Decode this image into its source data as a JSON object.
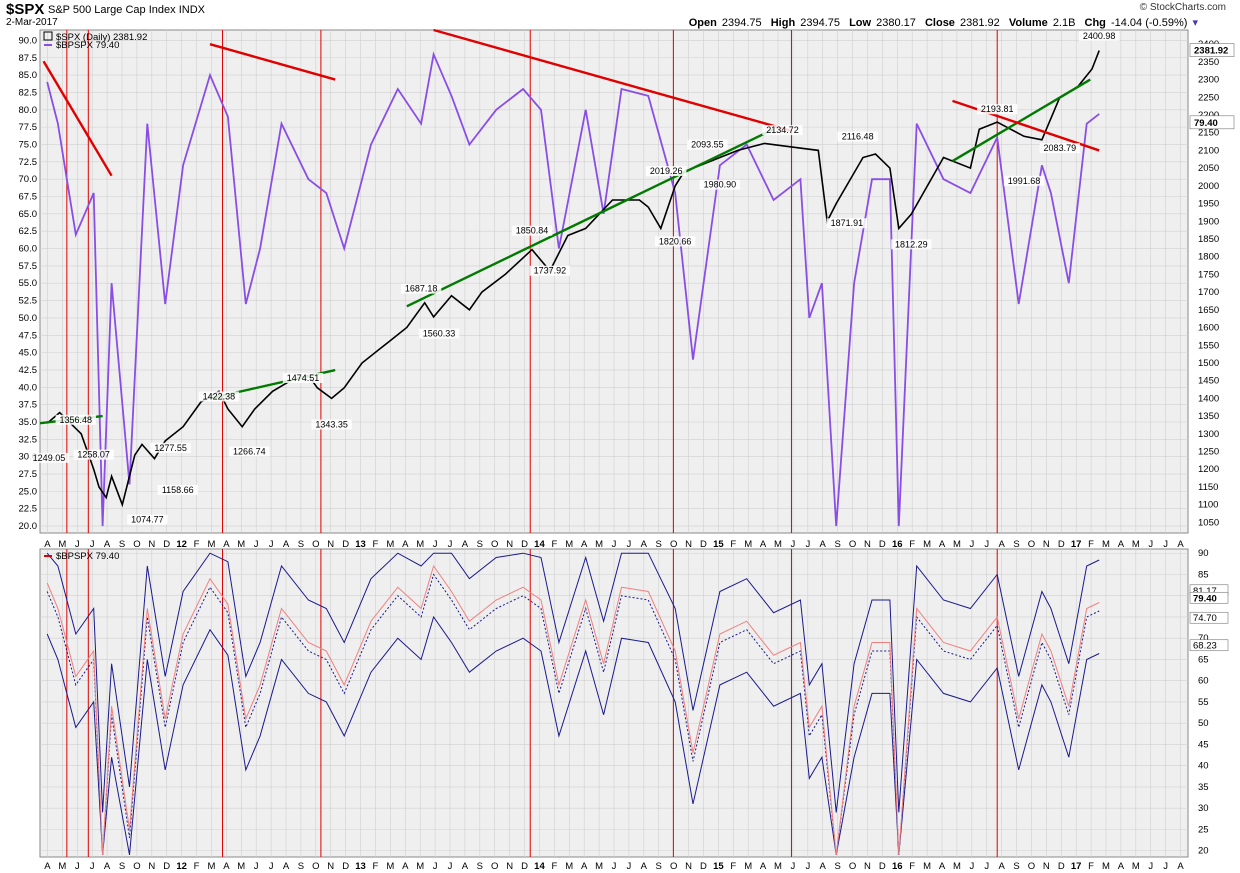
{
  "header": {
    "symbol": "$SPX",
    "name": "S&P 500 Large Cap Index",
    "exchange": "INDX",
    "date": "2-Mar-2017",
    "credit": "© StockCharts.com",
    "open_label": "Open",
    "open": "2394.75",
    "high_label": "High",
    "high": "2394.75",
    "low_label": "Low",
    "low": "2380.17",
    "close_label": "Close",
    "close": "2381.92",
    "volume_label": "Volume",
    "volume": "2.1B",
    "chg_label": "Chg",
    "chg": "-14.04 (-0.59%)"
  },
  "legend": {
    "spx": "$SPX (Daily) 2381.92",
    "bpspx": "$BPSPX 79.40",
    "lower": "$BPSPX 79.40"
  },
  "colors": {
    "bpspx": "#8a4de6",
    "price_up": "#000000",
    "price_down": "#e00000",
    "bands": "#1a1a8c",
    "ma": "#f08080",
    "trend_red": "#e00000",
    "trend_green": "#007a00",
    "vline": "#e00000",
    "grid": "#d0d0d0",
    "panel_bg": "#efefef"
  },
  "chart_data": [
    {
      "type": "line",
      "title": "$SPX (Daily) 2381.92",
      "series": [
        {
          "name": "$SPX",
          "x": [
            2011.29,
            2011.36,
            2011.42,
            2011.48,
            2011.55,
            2011.58,
            2011.62,
            2011.65,
            2011.71,
            2011.78,
            2011.82,
            2011.89,
            2011.95,
            2012.05,
            2012.15,
            2012.25,
            2012.3,
            2012.38,
            2012.45,
            2012.55,
            2012.65,
            2012.75,
            2012.8,
            2012.88,
            2012.95,
            2013.05,
            2013.2,
            2013.3,
            2013.4,
            2013.45,
            2013.55,
            2013.65,
            2013.72,
            2013.85,
            2014.0,
            2014.1,
            2014.2,
            2014.3,
            2014.45,
            2014.6,
            2014.65,
            2014.72,
            2014.8,
            2014.85,
            2014.95,
            2015.05,
            2015.15,
            2015.3,
            2015.45,
            2015.6,
            2015.65,
            2015.7,
            2015.85,
            2015.92,
            2016.0,
            2016.05,
            2016.12,
            2016.3,
            2016.45,
            2016.5,
            2016.6,
            2016.75,
            2016.85,
            2016.95,
            2017.05,
            2017.13,
            2017.17
          ],
          "y": [
            1330,
            1360,
            1330,
            1300,
            1200,
            1150,
            1120,
            1180,
            1100,
            1240,
            1270,
            1230,
            1280,
            1320,
            1390,
            1420,
            1370,
            1320,
            1370,
            1420,
            1450,
            1465,
            1430,
            1400,
            1430,
            1500,
            1560,
            1600,
            1670,
            1630,
            1690,
            1650,
            1700,
            1750,
            1820,
            1760,
            1860,
            1880,
            1960,
            1960,
            1940,
            1880,
            2000,
            2040,
            2060,
            2080,
            2100,
            2120,
            2110,
            2100,
            1900,
            1950,
            2080,
            2090,
            2050,
            1880,
            1920,
            2080,
            2050,
            2160,
            2180,
            2140,
            2130,
            2250,
            2280,
            2330,
            2381.92
          ]
        },
        {
          "name": "$BPSPX",
          "x": [
            2011.29,
            2011.35,
            2011.45,
            2011.55,
            2011.6,
            2011.65,
            2011.75,
            2011.85,
            2011.95,
            2012.05,
            2012.2,
            2012.3,
            2012.4,
            2012.48,
            2012.6,
            2012.75,
            2012.85,
            2012.95,
            2013.1,
            2013.25,
            2013.38,
            2013.45,
            2013.55,
            2013.65,
            2013.8,
            2013.95,
            2014.05,
            2014.15,
            2014.3,
            2014.4,
            2014.5,
            2014.65,
            2014.8,
            2014.9,
            2015.05,
            2015.2,
            2015.35,
            2015.5,
            2015.55,
            2015.62,
            2015.7,
            2015.8,
            2015.9,
            2016.0,
            2016.05,
            2016.15,
            2016.3,
            2016.45,
            2016.6,
            2016.72,
            2016.85,
            2016.9,
            2017.0,
            2017.1,
            2017.17
          ],
          "y": [
            84,
            78,
            62,
            68,
            20,
            55,
            26,
            78,
            52,
            72,
            85,
            79,
            52,
            60,
            78,
            70,
            68,
            60,
            75,
            83,
            78,
            88,
            82,
            75,
            80,
            83,
            80,
            60,
            80,
            65,
            83,
            82,
            68,
            44,
            72,
            75,
            67,
            70,
            50,
            55,
            20,
            55,
            70,
            70,
            20,
            78,
            70,
            68,
            76,
            52,
            72,
            68,
            55,
            78,
            79.4
          ]
        }
      ],
      "markers": {
        "labels": [
          "1249.05",
          "1356.48",
          "1258.07",
          "1074.77",
          "1277.55",
          "1158.66",
          "1422.38",
          "1266.74",
          "1474.51",
          "1343.35",
          "1687.18",
          "1560.33",
          "1850.84",
          "1737.92",
          "2019.26",
          "1820.66",
          "2093.55",
          "1980.90",
          "2134.72",
          "2116.48",
          "1871.91",
          "1812.29",
          "2193.81",
          "1991.68",
          "2083.79",
          "2400.98"
        ],
        "x": [
          2011.3,
          2011.45,
          2011.55,
          2011.85,
          2011.98,
          2012.02,
          2012.25,
          2012.42,
          2012.72,
          2012.88,
          2013.38,
          2013.48,
          2014.0,
          2014.1,
          2014.75,
          2014.8,
          2014.98,
          2015.05,
          2015.4,
          2015.82,
          2015.76,
          2016.12,
          2016.6,
          2016.75,
          2016.95,
          2017.17
        ],
        "y": [
          1249.05,
          1356.48,
          1258.07,
          1074.77,
          1277.55,
          1158.66,
          1422.38,
          1266.74,
          1474.51,
          1343.35,
          1687.18,
          1560.33,
          1850.84,
          1737.92,
          2019.26,
          1820.66,
          2093.55,
          1980.9,
          2134.72,
          2116.48,
          1871.91,
          1812.29,
          2193.81,
          1991.68,
          2083.79,
          2400.98
        ]
      },
      "right_axis_ticks": [
        2400,
        2350,
        2300,
        2250,
        2200,
        2150,
        2100,
        2050,
        2000,
        1950,
        1900,
        1850,
        1800,
        1750,
        1700,
        1650,
        1600,
        1550,
        1500,
        1450,
        1400,
        1350,
        1300,
        1250,
        1200,
        1150,
        1100,
        1050
      ],
      "left_axis_ticks": [
        "90.0",
        "87.5",
        "85.0",
        "82.5",
        "80.0",
        "77.5",
        "75.0",
        "72.5",
        "70.0",
        "67.5",
        "65.0",
        "62.5",
        "60.0",
        "57.5",
        "55.0",
        "52.5",
        "50.0",
        "47.5",
        "45.0",
        "42.5",
        "40.0",
        "37.5",
        "35.0",
        "32.5",
        "30.0",
        "27.5",
        "25.0",
        "22.5",
        "20.0"
      ],
      "ylim_right": [
        1020,
        2440
      ],
      "ylim_left": [
        19,
        91.5
      ],
      "last_value_tags": [
        "2381.92",
        "79.40"
      ]
    },
    {
      "type": "line",
      "title": "$BPSPX 79.40",
      "series": [
        {
          "name": "$BPSPX",
          "x": [
            2011.29,
            2011.35,
            2011.45,
            2011.55,
            2011.6,
            2011.65,
            2011.75,
            2011.85,
            2011.95,
            2012.05,
            2012.2,
            2012.3,
            2012.4,
            2012.48,
            2012.6,
            2012.75,
            2012.85,
            2012.95,
            2013.1,
            2013.25,
            2013.38,
            2013.45,
            2013.55,
            2013.65,
            2013.8,
            2013.95,
            2014.05,
            2014.15,
            2014.3,
            2014.4,
            2014.5,
            2014.65,
            2014.8,
            2014.9,
            2015.05,
            2015.2,
            2015.35,
            2015.5,
            2015.55,
            2015.62,
            2015.7,
            2015.8,
            2015.9,
            2016.0,
            2016.05,
            2016.15,
            2016.3,
            2016.45,
            2016.6,
            2016.72,
            2016.85,
            2016.9,
            2017.0,
            2017.1,
            2017.17
          ],
          "y": [
            84,
            78,
            62,
            68,
            20,
            55,
            26,
            78,
            52,
            72,
            85,
            79,
            52,
            60,
            78,
            70,
            68,
            60,
            75,
            83,
            78,
            88,
            82,
            75,
            80,
            83,
            80,
            60,
            80,
            65,
            83,
            82,
            68,
            44,
            72,
            75,
            67,
            70,
            50,
            55,
            20,
            55,
            70,
            70,
            20,
            78,
            70,
            68,
            76,
            52,
            72,
            68,
            55,
            78,
            79.4
          ]
        }
      ],
      "axis_ticks": [
        "90",
        "85",
        "80",
        "75",
        "70",
        "65",
        "60",
        "55",
        "50",
        "45",
        "40",
        "35",
        "30",
        "25",
        "20"
      ],
      "ylim": [
        18.5,
        91
      ],
      "last_value_tags": [
        "81.17",
        "79.40",
        "74.70",
        "68.23"
      ]
    }
  ],
  "x_axis": {
    "labels": [
      "A",
      "M",
      "J",
      "J",
      "A",
      "S",
      "O",
      "N",
      "D",
      "12",
      "F",
      "M",
      "A",
      "M",
      "J",
      "J",
      "A",
      "S",
      "O",
      "N",
      "D",
      "13",
      "F",
      "M",
      "A",
      "M",
      "J",
      "J",
      "A",
      "S",
      "O",
      "N",
      "D",
      "14",
      "F",
      "M",
      "A",
      "M",
      "J",
      "J",
      "A",
      "S",
      "O",
      "N",
      "D",
      "15",
      "F",
      "M",
      "A",
      "M",
      "J",
      "J",
      "A",
      "S",
      "O",
      "N",
      "D",
      "16",
      "F",
      "M",
      "A",
      "M",
      "J",
      "J",
      "A",
      "S",
      "O",
      "N",
      "D",
      "17",
      "F",
      "M",
      "A",
      "M",
      "J",
      "J",
      "A"
    ],
    "start": 2011.25,
    "step": 0.08333
  }
}
